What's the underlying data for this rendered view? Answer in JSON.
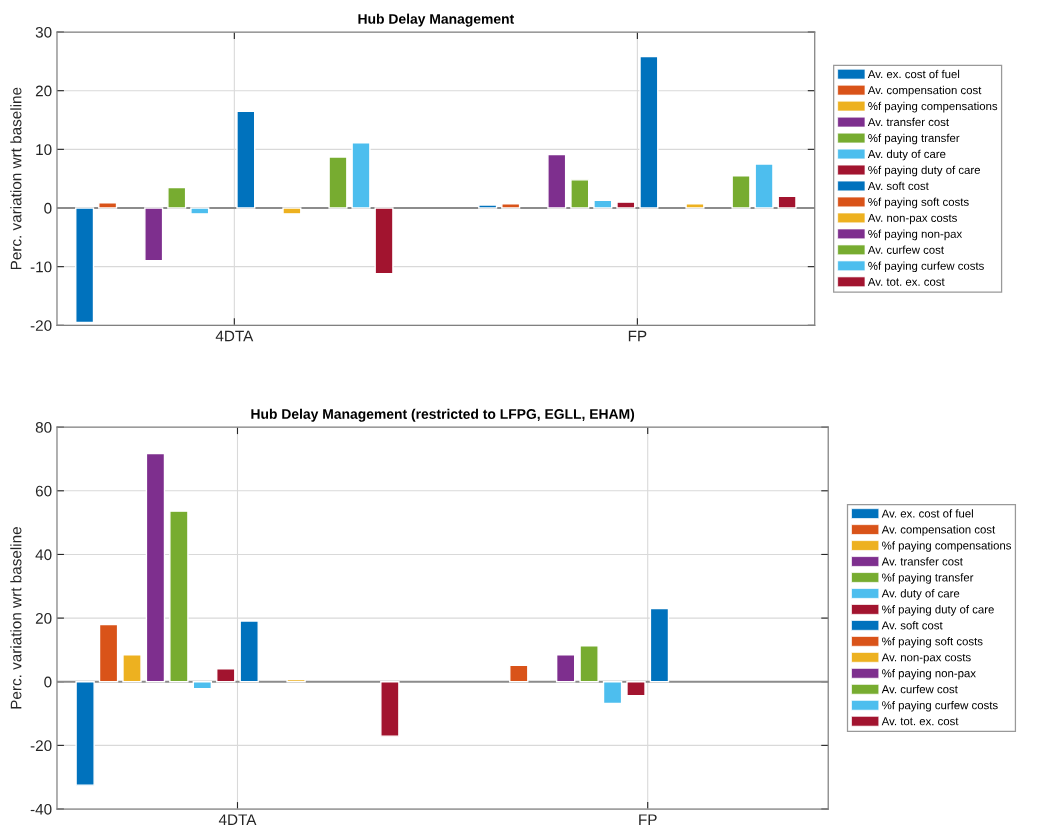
{
  "chart_data": [
    {
      "type": "bar",
      "title": "Hub Delay Management",
      "ylabel": "Perc. variation wrt baseline",
      "categories": [
        "4DTA",
        "FP"
      ],
      "series": [
        {
          "name": "Av. ex. cost of fuel",
          "color": "#0072bd",
          "values": [
            -19.5,
            0.5
          ]
        },
        {
          "name": "Av. compensation cost",
          "color": "#d95319",
          "values": [
            0.9,
            0.7
          ]
        },
        {
          "name": "%f paying compensations",
          "color": "#edb120",
          "values": [
            0,
            0
          ]
        },
        {
          "name": "Av. transfer cost",
          "color": "#7e2f8e",
          "values": [
            -9.0,
            9.1
          ]
        },
        {
          "name": "%f paying transfer",
          "color": "#77ac30",
          "values": [
            3.5,
            4.8
          ]
        },
        {
          "name": "Av. duty of care",
          "color": "#4dbeee",
          "values": [
            -1.0,
            1.3
          ]
        },
        {
          "name": "%f paying duty of care",
          "color": "#a2142f",
          "values": [
            0,
            1.0
          ]
        },
        {
          "name": "Av. soft cost",
          "color": "#0072bd",
          "values": [
            16.5,
            25.8
          ]
        },
        {
          "name": "%f paying soft costs",
          "color": "#d95319",
          "values": [
            0,
            0
          ]
        },
        {
          "name": "Av. non-pax costs",
          "color": "#edb120",
          "values": [
            -1.0,
            0.7
          ]
        },
        {
          "name": "%f paying non-pax",
          "color": "#7e2f8e",
          "values": [
            0,
            0
          ]
        },
        {
          "name": "Av. curfew cost",
          "color": "#77ac30",
          "values": [
            8.7,
            5.5
          ]
        },
        {
          "name": "%f paying curfew costs",
          "color": "#4dbeee",
          "values": [
            11.1,
            7.5
          ]
        },
        {
          "name": "Av. tot. ex. cost",
          "color": "#a2142f",
          "values": [
            -11.2,
            2.0
          ]
        }
      ],
      "ylim": [
        -20,
        30
      ],
      "yticks": [
        -20,
        -10,
        0,
        10,
        20,
        30
      ],
      "grid": true,
      "legend": "right",
      "ref_lines": [
        {
          "axis": "y",
          "value": 0,
          "color": "#8c8c8c"
        }
      ]
    },
    {
      "type": "bar",
      "title": "Hub Delay Management (restricted to LFPG, EGLL, EHAM)",
      "ylabel": "Perc. variation wrt baseline",
      "categories": [
        "4DTA",
        "FP"
      ],
      "series": [
        {
          "name": "Av. ex. cost of fuel",
          "color": "#0072bd",
          "values": [
            -32.5,
            0
          ]
        },
        {
          "name": "Av. compensation cost",
          "color": "#d95319",
          "values": [
            18.0,
            5.2
          ]
        },
        {
          "name": "%f paying compensations",
          "color": "#edb120",
          "values": [
            8.5,
            0
          ]
        },
        {
          "name": "Av. transfer cost",
          "color": "#7e2f8e",
          "values": [
            71.7,
            8.5
          ]
        },
        {
          "name": "%f paying transfer",
          "color": "#77ac30",
          "values": [
            53.6,
            11.3
          ]
        },
        {
          "name": "Av. duty of care",
          "color": "#4dbeee",
          "values": [
            -2.2,
            -6.8
          ]
        },
        {
          "name": "%f paying duty of care",
          "color": "#a2142f",
          "values": [
            4.1,
            -4.4
          ]
        },
        {
          "name": "Av. soft cost",
          "color": "#0072bd",
          "values": [
            19.1,
            23.0
          ]
        },
        {
          "name": "%f paying soft costs",
          "color": "#d95319",
          "values": [
            0,
            0
          ]
        },
        {
          "name": "Av. non-pax costs",
          "color": "#edb120",
          "values": [
            0.7,
            0
          ]
        },
        {
          "name": "%f paying non-pax",
          "color": "#7e2f8e",
          "values": [
            0,
            0
          ]
        },
        {
          "name": "Av. curfew cost",
          "color": "#77ac30",
          "values": [
            null,
            null
          ]
        },
        {
          "name": "%f paying curfew costs",
          "color": "#4dbeee",
          "values": [
            null,
            null
          ]
        },
        {
          "name": "Av. tot. ex. cost",
          "color": "#a2142f",
          "values": [
            -17.1,
            0
          ]
        }
      ],
      "ylim": [
        -40,
        80
      ],
      "yticks": [
        -40,
        -20,
        0,
        20,
        40,
        60,
        80
      ],
      "grid": true,
      "legend": "right",
      "ref_lines": [
        {
          "axis": "y",
          "value": 0,
          "color": "#8c8c8c"
        }
      ]
    }
  ]
}
